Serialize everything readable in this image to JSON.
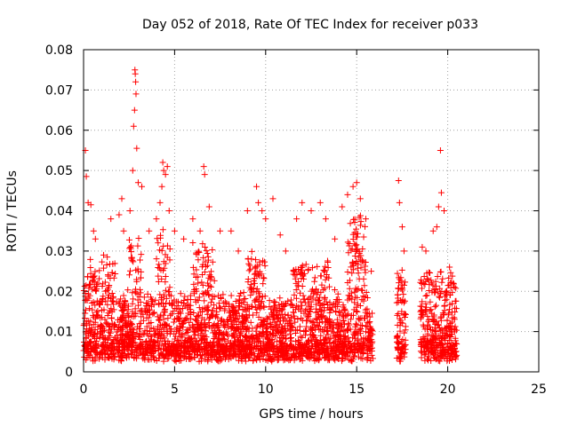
{
  "chart_data": {
    "type": "scatter",
    "title": "Day 052 of 2018, Rate Of TEC Index for receiver p033",
    "xlabel": "GPS time / hours",
    "ylabel": "ROTI / TECUs",
    "xlim": [
      0,
      25
    ],
    "ylim": [
      0,
      0.08
    ],
    "x_ticks": [
      "0",
      "5",
      "10",
      "15",
      "20",
      "25"
    ],
    "y_ticks": [
      "0",
      "0.01",
      "0.02",
      "0.03",
      "0.04",
      "0.05",
      "0.06",
      "0.07",
      "0.08"
    ],
    "grid": true,
    "marker": "plus",
    "color": "#ff0000",
    "coverage_intervals_hours": [
      [
        0.0,
        1.75
      ],
      [
        1.8,
        15.9
      ],
      [
        17.2,
        17.7
      ],
      [
        18.5,
        20.5
      ]
    ],
    "series": [
      {
        "points": [
          [
            0.1,
            0.055
          ],
          [
            0.15,
            0.0485
          ],
          [
            0.25,
            0.042
          ],
          [
            0.4,
            0.0415
          ],
          [
            0.55,
            0.035
          ],
          [
            0.65,
            0.033
          ],
          [
            1.1,
            0.029
          ],
          [
            1.3,
            0.0285
          ],
          [
            1.5,
            0.038
          ],
          [
            1.95,
            0.039
          ],
          [
            2.1,
            0.043
          ],
          [
            2.2,
            0.035
          ],
          [
            2.55,
            0.04
          ],
          [
            2.7,
            0.05
          ],
          [
            2.75,
            0.061
          ],
          [
            2.8,
            0.065
          ],
          [
            2.82,
            0.075
          ],
          [
            2.84,
            0.074
          ],
          [
            2.86,
            0.072
          ],
          [
            2.88,
            0.069
          ],
          [
            2.92,
            0.0555
          ],
          [
            3.0,
            0.047
          ],
          [
            3.2,
            0.046
          ],
          [
            3.6,
            0.035
          ],
          [
            4.0,
            0.038
          ],
          [
            4.2,
            0.042
          ],
          [
            4.3,
            0.046
          ],
          [
            4.35,
            0.052
          ],
          [
            4.4,
            0.05
          ],
          [
            4.5,
            0.049
          ],
          [
            4.6,
            0.051
          ],
          [
            4.7,
            0.04
          ],
          [
            5.0,
            0.035
          ],
          [
            5.5,
            0.033
          ],
          [
            6.0,
            0.038
          ],
          [
            6.4,
            0.035
          ],
          [
            6.6,
            0.051
          ],
          [
            6.65,
            0.049
          ],
          [
            6.9,
            0.041
          ],
          [
            7.5,
            0.035
          ],
          [
            8.1,
            0.035
          ],
          [
            8.5,
            0.03
          ],
          [
            9.0,
            0.04
          ],
          [
            9.5,
            0.046
          ],
          [
            9.6,
            0.042
          ],
          [
            9.8,
            0.04
          ],
          [
            10.0,
            0.038
          ],
          [
            10.4,
            0.043
          ],
          [
            10.8,
            0.034
          ],
          [
            11.1,
            0.03
          ],
          [
            11.7,
            0.038
          ],
          [
            12.0,
            0.042
          ],
          [
            12.5,
            0.04
          ],
          [
            13.0,
            0.042
          ],
          [
            13.3,
            0.038
          ],
          [
            13.8,
            0.033
          ],
          [
            14.2,
            0.041
          ],
          [
            14.5,
            0.044
          ],
          [
            14.8,
            0.046
          ],
          [
            15.0,
            0.047
          ],
          [
            15.2,
            0.043
          ],
          [
            15.5,
            0.038
          ],
          [
            15.8,
            0.025
          ],
          [
            17.3,
            0.0475
          ],
          [
            17.35,
            0.042
          ],
          [
            17.5,
            0.036
          ],
          [
            17.6,
            0.03
          ],
          [
            18.6,
            0.031
          ],
          [
            18.8,
            0.03
          ],
          [
            19.2,
            0.035
          ],
          [
            19.4,
            0.036
          ],
          [
            19.5,
            0.041
          ],
          [
            19.6,
            0.055
          ],
          [
            19.65,
            0.0445
          ],
          [
            19.8,
            0.04
          ],
          [
            20.1,
            0.026
          ],
          [
            20.3,
            0.022
          ]
        ]
      }
    ]
  }
}
